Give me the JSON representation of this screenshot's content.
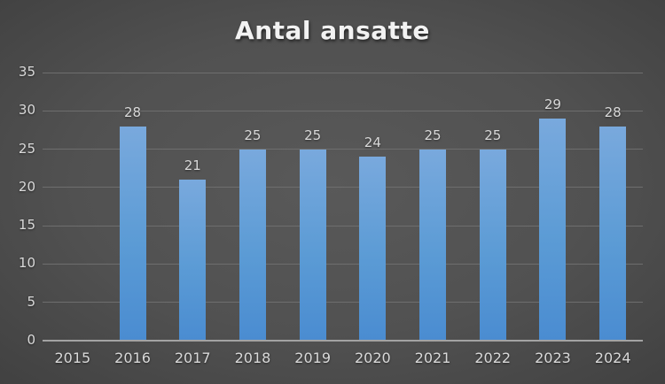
{
  "title": "Antal ansatte",
  "chart_data": {
    "type": "bar",
    "title": "Antal ansatte",
    "categories": [
      "2015",
      "2016",
      "2017",
      "2018",
      "2019",
      "2020",
      "2021",
      "2022",
      "2023",
      "2024"
    ],
    "values": [
      0,
      28,
      21,
      25,
      25,
      24,
      25,
      25,
      29,
      28
    ],
    "data_labels": [
      "",
      "28",
      "21",
      "25",
      "25",
      "24",
      "25",
      "25",
      "29",
      "28"
    ],
    "xlabel": "",
    "ylabel": "",
    "ylim": [
      0,
      35
    ],
    "yticks": [
      0,
      5,
      10,
      15,
      20,
      25,
      30,
      35
    ],
    "grid": true,
    "legend": "none",
    "colors": {
      "bar_top": "#79a9dd",
      "bar_mid": "#5b9bd5",
      "bar_bottom": "#4a8cd1",
      "background_center": "#575757",
      "background_edge": "#242424",
      "gridline": "#6e6e6e",
      "axis_line": "#a3a3a3",
      "tick_label": "#d9d9d9",
      "title": "#f2f2f2"
    }
  }
}
